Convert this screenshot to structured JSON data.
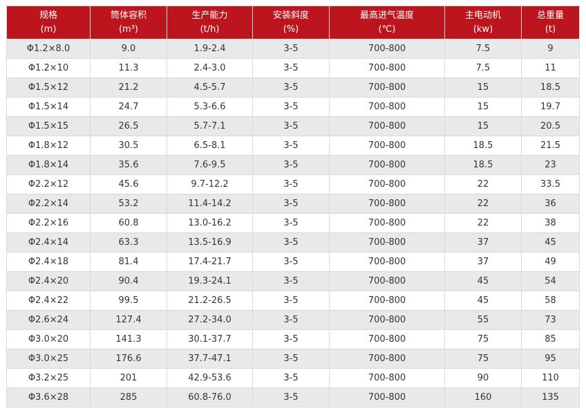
{
  "table": {
    "header": [
      [
        "规格",
        "(m)"
      ],
      [
        "筒体容积",
        "(m³)"
      ],
      [
        "生产能力",
        "(t/h)"
      ],
      [
        "安装斜度",
        "(%)"
      ],
      [
        "最高进气温度",
        "(℃)"
      ],
      [
        "主电动机",
        "(kw)"
      ],
      [
        "总重量",
        "(t)"
      ]
    ],
    "rows": [
      [
        "Φ1.2×8.0",
        "9.0",
        "1.9-2.4",
        "3-5",
        "700-800",
        "7.5",
        "9"
      ],
      [
        "Φ1.2×10",
        "11.3",
        "2.4-3.0",
        "3-5",
        "700-800",
        "7.5",
        "11"
      ],
      [
        "Φ1.5×12",
        "21.2",
        "4.5-5.7",
        "3-5",
        "700-800",
        "15",
        "18.5"
      ],
      [
        "Φ1.5×14",
        "24.7",
        "5.3-6.6",
        "3-5",
        "700-800",
        "15",
        "19.7"
      ],
      [
        "Φ1.5×15",
        "26.5",
        "5.7-7.1",
        "3-5",
        "700-800",
        "15",
        "20.5"
      ],
      [
        "Φ1.8×12",
        "30.5",
        "6.5-8.1",
        "3-5",
        "700-800",
        "18.5",
        "21.5"
      ],
      [
        "Φ1.8×14",
        "35.6",
        "7.6-9.5",
        "3-5",
        "700-800",
        "18.5",
        "23"
      ],
      [
        "Φ2.2×12",
        "45.6",
        "9.7-12.2",
        "3-5",
        "700-800",
        "22",
        "33.5"
      ],
      [
        "Φ2.2×14",
        "53.2",
        "11.4-14.2",
        "3-5",
        "700-800",
        "22",
        "36"
      ],
      [
        "Φ2.2×16",
        "60.8",
        "13.0-16.2",
        "3-5",
        "700-800",
        "22",
        "38"
      ],
      [
        "Φ2.4×14",
        "63.3",
        "13.5-16.9",
        "3-5",
        "700-800",
        "37",
        "45"
      ],
      [
        "Φ2.4×18",
        "81.4",
        "17.4-21.7",
        "3-5",
        "700-800",
        "37",
        "49"
      ],
      [
        "Φ2.4×20",
        "90.4",
        "19.3-24.1",
        "3-5",
        "700-800",
        "45",
        "54"
      ],
      [
        "Φ2.4×22",
        "99.5",
        "21.2-26.5",
        "3-5",
        "700-800",
        "45",
        "58"
      ],
      [
        "Φ2.6×24",
        "127.4",
        "27.2-34.0",
        "3-5",
        "700-800",
        "55",
        "73"
      ],
      [
        "Φ3.0×20",
        "141.3",
        "30.1-37.7",
        "3-5",
        "700-800",
        "75",
        "85"
      ],
      [
        "Φ3.0×25",
        "176.6",
        "37.7-47.1",
        "3-5",
        "700-800",
        "75",
        "95"
      ],
      [
        "Φ3.2×25",
        "201",
        "42.9-53.6",
        "3-5",
        "700-800",
        "90",
        "110"
      ],
      [
        "Φ3.6×28",
        "285",
        "60.8-76.0",
        "3-5",
        "700-800",
        "160",
        "135"
      ]
    ]
  }
}
